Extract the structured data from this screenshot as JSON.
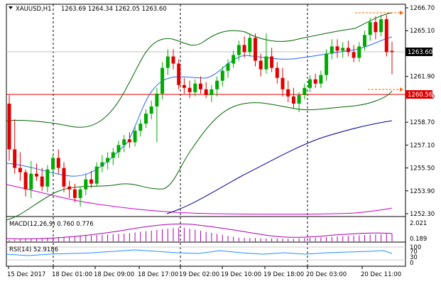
{
  "header": {
    "symbol": "XAUUSD,H1",
    "ohlc": "1263.69 1264.34 1262.05 1263.60"
  },
  "indicators": {
    "macd_label": "MACD(12,26,9) 0.760 0.776",
    "rsi_label": "RSI(14) 52.9186"
  },
  "chart_data": {
    "type": "candlestick",
    "y_ticks": [
      "1266.70",
      "1265.10",
      "1261.90",
      "1260.50",
      "1258.70",
      "1257.10",
      "1255.50",
      "1253.90",
      "1252.30"
    ],
    "current_price": "1263.60",
    "marker_price": "1260.56",
    "x_ticks": [
      "15 Dec 2017",
      "18 Dec 01:00",
      "18 Dec 09:00",
      "18 Dec 17:00",
      "19 Dec 02:00",
      "19 Dec 10:00",
      "19 Dec 18:00",
      "20 Dec 03:00",
      "20 Dec 11:00"
    ],
    "macd_ticks": [
      "2.021",
      "0.189"
    ],
    "rsi_ticks": [
      "100",
      "70",
      "30",
      "0"
    ],
    "colors": {
      "bull": "#00aa00",
      "bear": "#e00000",
      "bollinger": "#006600",
      "ma_fast": "#0055ff",
      "ma_slow": "#000099",
      "ma_long": "#cc00cc",
      "macd": "#aa00aa"
    },
    "candles": [
      [
        1260.0,
        1260.6,
        1256.0,
        1256.8
      ],
      [
        1256.8,
        1258.9,
        1255.1,
        1255.5
      ],
      [
        1255.5,
        1256.6,
        1254.6,
        1255.2
      ],
      [
        1255.2,
        1255.4,
        1253.5,
        1254.0
      ],
      [
        1254.0,
        1256.0,
        1253.4,
        1255.1
      ],
      [
        1255.1,
        1255.8,
        1254.6,
        1254.9
      ],
      [
        1254.9,
        1255.5,
        1253.9,
        1254.2
      ],
      [
        1254.2,
        1255.7,
        1253.8,
        1255.4
      ],
      [
        1255.4,
        1256.5,
        1255.0,
        1256.2
      ],
      [
        1256.2,
        1256.8,
        1255.1,
        1255.5
      ],
      [
        1255.5,
        1255.9,
        1253.8,
        1254.2
      ],
      [
        1254.2,
        1254.6,
        1253.4,
        1254.0
      ],
      [
        1254.0,
        1254.4,
        1253.1,
        1253.4
      ],
      [
        1253.4,
        1254.2,
        1252.8,
        1254.0
      ],
      [
        1254.0,
        1255.1,
        1253.6,
        1254.7
      ],
      [
        1254.7,
        1255.3,
        1254.1,
        1254.4
      ],
      [
        1254.4,
        1255.9,
        1254.2,
        1255.6
      ],
      [
        1255.6,
        1256.4,
        1255.2,
        1255.9
      ],
      [
        1255.9,
        1256.6,
        1255.4,
        1256.2
      ],
      [
        1256.2,
        1256.9,
        1255.7,
        1256.6
      ],
      [
        1256.6,
        1257.4,
        1256.2,
        1257.1
      ],
      [
        1257.1,
        1257.8,
        1256.6,
        1257.5
      ],
      [
        1257.5,
        1258.0,
        1256.9,
        1257.3
      ],
      [
        1257.3,
        1258.4,
        1257.0,
        1258.1
      ],
      [
        1258.1,
        1258.9,
        1257.7,
        1258.6
      ],
      [
        1258.6,
        1259.6,
        1258.3,
        1259.3
      ],
      [
        1259.3,
        1260.2,
        1258.9,
        1259.8
      ],
      [
        1259.8,
        1261.1,
        1257.3,
        1260.7
      ],
      [
        1260.7,
        1262.9,
        1260.3,
        1262.5
      ],
      [
        1262.5,
        1263.8,
        1262.0,
        1263.3
      ],
      [
        1263.3,
        1263.8,
        1262.4,
        1262.8
      ],
      [
        1262.8,
        1263.1,
        1261.0,
        1261.3
      ],
      [
        1261.3,
        1261.8,
        1260.7,
        1261.1
      ],
      [
        1261.1,
        1261.6,
        1260.4,
        1260.8
      ],
      [
        1260.8,
        1261.7,
        1260.5,
        1261.4
      ],
      [
        1261.4,
        1261.9,
        1260.7,
        1261.0
      ],
      [
        1261.0,
        1261.5,
        1260.4,
        1260.6
      ],
      [
        1260.6,
        1261.3,
        1260.1,
        1261.0
      ],
      [
        1261.0,
        1261.9,
        1260.5,
        1261.6
      ],
      [
        1261.6,
        1262.6,
        1261.2,
        1262.3
      ],
      [
        1262.3,
        1263.1,
        1261.8,
        1262.8
      ],
      [
        1262.8,
        1263.7,
        1262.5,
        1263.4
      ],
      [
        1263.4,
        1264.4,
        1263.0,
        1264.1
      ],
      [
        1264.1,
        1264.7,
        1263.2,
        1263.6
      ],
      [
        1263.6,
        1264.9,
        1263.3,
        1264.6
      ],
      [
        1264.6,
        1264.9,
        1262.6,
        1263.0
      ],
      [
        1263.0,
        1263.5,
        1261.9,
        1262.4
      ],
      [
        1262.4,
        1264.9,
        1262.1,
        1263.3
      ],
      [
        1263.3,
        1263.9,
        1262.2,
        1262.5
      ],
      [
        1262.5,
        1262.9,
        1261.4,
        1261.8
      ],
      [
        1261.8,
        1262.5,
        1260.5,
        1261.0
      ],
      [
        1261.0,
        1261.6,
        1260.1,
        1260.5
      ],
      [
        1260.5,
        1261.1,
        1259.7,
        1260.0
      ],
      [
        1260.0,
        1260.8,
        1259.4,
        1260.6
      ],
      [
        1260.6,
        1261.4,
        1260.3,
        1261.1
      ],
      [
        1261.1,
        1262.0,
        1260.8,
        1261.7
      ],
      [
        1261.7,
        1262.1,
        1261.1,
        1261.4
      ],
      [
        1261.4,
        1262.3,
        1261.1,
        1262.0
      ],
      [
        1262.0,
        1263.8,
        1261.6,
        1263.5
      ],
      [
        1263.5,
        1264.5,
        1263.1,
        1264.0
      ],
      [
        1264.0,
        1264.5,
        1263.2,
        1263.7
      ],
      [
        1263.7,
        1264.3,
        1263.2,
        1263.9
      ],
      [
        1263.9,
        1264.4,
        1263.3,
        1263.6
      ],
      [
        1263.6,
        1264.1,
        1262.9,
        1263.2
      ],
      [
        1263.2,
        1264.3,
        1262.9,
        1264.0
      ],
      [
        1264.0,
        1265.1,
        1263.7,
        1264.8
      ],
      [
        1264.8,
        1266.0,
        1264.4,
        1265.7
      ],
      [
        1265.7,
        1266.1,
        1264.5,
        1265.0
      ],
      [
        1265.0,
        1266.2,
        1264.7,
        1265.9
      ],
      [
        1265.9,
        1266.2,
        1263.3,
        1263.6
      ],
      [
        1263.69,
        1264.34,
        1262.05,
        1263.6
      ]
    ]
  }
}
